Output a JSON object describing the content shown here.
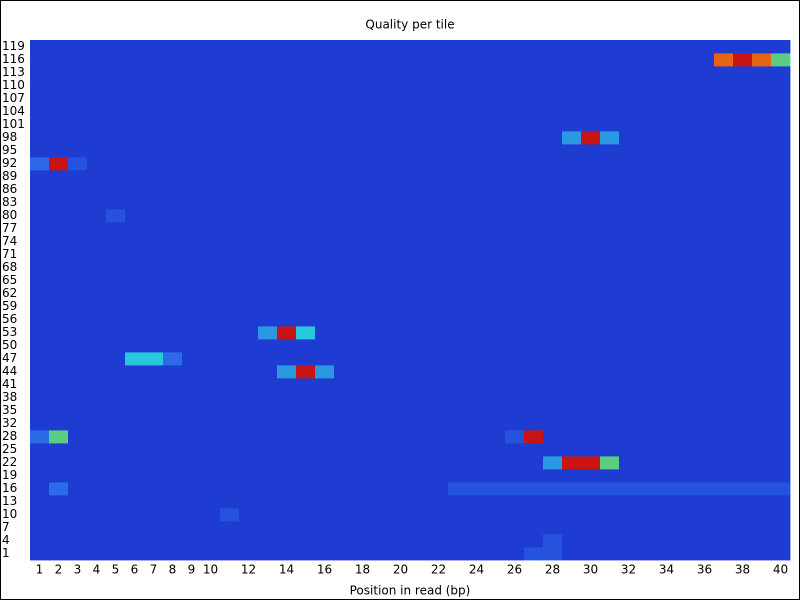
{
  "chart_data": {
    "type": "heatmap",
    "title": "Quality per tile",
    "x_label": "Position in read (bp)",
    "x": [
      1,
      2,
      3,
      4,
      5,
      6,
      7,
      8,
      9,
      10,
      null,
      12,
      null,
      14,
      null,
      16,
      null,
      18,
      null,
      20,
      null,
      22,
      null,
      24,
      null,
      26,
      null,
      28,
      null,
      30,
      null,
      32,
      null,
      34,
      null,
      36,
      null,
      38,
      null,
      40
    ],
    "y": [
      1,
      4,
      7,
      10,
      13,
      16,
      19,
      22,
      25,
      28,
      32,
      35,
      38,
      41,
      44,
      47,
      50,
      53,
      56,
      59,
      62,
      65,
      68,
      71,
      74,
      77,
      80,
      83,
      86,
      89,
      92,
      95,
      98,
      101,
      104,
      107,
      110,
      113,
      116,
      119
    ],
    "zlim": [
      0,
      10
    ],
    "colors": [
      "#1e3cd2",
      "#2c6ae8",
      "#28c8dc",
      "#8cd228",
      "#e66414",
      "#c81414"
    ],
    "values": [
      [
        0,
        0,
        0,
        0,
        0,
        0,
        0,
        0,
        0,
        0,
        0,
        0,
        0,
        0,
        0,
        0,
        0,
        0,
        0,
        0,
        0,
        0,
        0,
        0,
        0,
        0,
        1,
        1,
        0,
        0,
        0,
        0,
        0,
        0,
        0,
        0,
        0,
        0,
        0,
        0
      ],
      [
        0,
        0,
        0,
        0,
        0,
        0,
        0,
        0,
        0,
        0,
        0,
        0,
        0,
        0,
        0,
        0,
        0,
        0,
        0,
        0,
        0,
        0,
        0,
        0,
        0,
        0,
        0,
        1,
        0,
        0,
        0,
        0,
        0,
        0,
        0,
        0,
        0,
        0,
        0,
        0
      ],
      [
        0,
        0,
        0,
        0,
        0,
        0,
        0,
        0,
        0,
        0,
        0,
        0,
        0,
        0,
        0,
        0,
        0,
        0,
        0,
        0,
        0,
        0,
        0,
        0,
        0,
        0,
        0,
        0,
        0,
        0,
        0,
        0,
        0,
        0,
        0,
        0,
        0,
        0,
        0,
        0
      ],
      [
        0,
        0,
        0,
        0,
        0,
        0,
        0,
        0,
        0,
        0,
        1,
        0,
        0,
        0,
        0,
        0,
        0,
        0,
        0,
        0,
        0,
        0,
        0,
        0,
        0,
        0,
        0,
        0,
        0,
        0,
        0,
        0,
        0,
        0,
        0,
        0,
        0,
        0,
        0,
        0
      ],
      [
        0,
        0,
        0,
        0,
        0,
        0,
        0,
        0,
        0,
        0,
        0,
        0,
        0,
        0,
        0,
        0,
        0,
        0,
        0,
        0,
        0,
        0,
        0,
        0,
        0,
        0,
        0,
        0,
        0,
        0,
        0,
        0,
        0,
        0,
        0,
        0,
        0,
        0,
        0,
        0
      ],
      [
        0,
        2,
        0,
        0,
        0,
        0,
        0,
        0,
        0,
        0,
        0,
        0,
        0,
        0,
        0,
        0,
        0,
        0,
        0,
        0,
        0,
        0,
        1,
        1,
        1,
        1,
        1,
        1,
        1,
        1,
        1,
        1,
        1,
        1,
        1,
        1,
        1,
        1,
        1,
        1
      ],
      [
        0,
        0,
        0,
        0,
        0,
        0,
        0,
        0,
        0,
        0,
        0,
        0,
        0,
        0,
        0,
        0,
        0,
        0,
        0,
        0,
        0,
        0,
        0,
        0,
        0,
        0,
        0,
        0,
        0,
        0,
        0,
        0,
        0,
        0,
        0,
        0,
        0,
        0,
        0,
        0
      ],
      [
        0,
        0,
        0,
        0,
        0,
        0,
        0,
        0,
        0,
        0,
        0,
        0,
        0,
        0,
        0,
        0,
        0,
        0,
        0,
        0,
        0,
        0,
        0,
        0,
        0,
        0,
        0,
        3,
        10,
        10,
        5,
        0,
        0,
        0,
        0,
        0,
        0,
        0,
        0,
        0
      ],
      [
        0,
        0,
        0,
        0,
        0,
        0,
        0,
        0,
        0,
        0,
        0,
        0,
        0,
        0,
        0,
        0,
        0,
        0,
        0,
        0,
        0,
        0,
        0,
        0,
        0,
        0,
        0,
        0,
        0,
        0,
        0,
        0,
        0,
        0,
        0,
        0,
        0,
        0,
        0,
        0
      ],
      [
        2,
        5,
        0,
        0,
        0,
        0,
        0,
        0,
        0,
        0,
        0,
        0,
        0,
        0,
        0,
        0,
        0,
        0,
        0,
        0,
        0,
        0,
        0,
        0,
        0,
        1,
        10,
        0,
        0,
        0,
        0,
        0,
        0,
        0,
        0,
        0,
        0,
        0,
        0,
        0
      ],
      [
        0,
        0,
        0,
        0,
        0,
        0,
        0,
        0,
        0,
        0,
        0,
        0,
        0,
        0,
        0,
        0,
        0,
        0,
        0,
        0,
        0,
        0,
        0,
        0,
        0,
        0,
        0,
        0,
        0,
        0,
        0,
        0,
        0,
        0,
        0,
        0,
        0,
        0,
        0,
        0
      ],
      [
        0,
        0,
        0,
        0,
        0,
        0,
        0,
        0,
        0,
        0,
        0,
        0,
        0,
        0,
        0,
        0,
        0,
        0,
        0,
        0,
        0,
        0,
        0,
        0,
        0,
        0,
        0,
        0,
        0,
        0,
        0,
        0,
        0,
        0,
        0,
        0,
        0,
        0,
        0,
        0
      ],
      [
        0,
        0,
        0,
        0,
        0,
        0,
        0,
        0,
        0,
        0,
        0,
        0,
        0,
        0,
        0,
        0,
        0,
        0,
        0,
        0,
        0,
        0,
        0,
        0,
        0,
        0,
        0,
        0,
        0,
        0,
        0,
        0,
        0,
        0,
        0,
        0,
        0,
        0,
        0,
        0
      ],
      [
        0,
        0,
        0,
        0,
        0,
        0,
        0,
        0,
        0,
        0,
        0,
        0,
        0,
        0,
        0,
        0,
        0,
        0,
        0,
        0,
        0,
        0,
        0,
        0,
        0,
        0,
        0,
        0,
        0,
        0,
        0,
        0,
        0,
        0,
        0,
        0,
        0,
        0,
        0,
        0
      ],
      [
        0,
        0,
        0,
        0,
        0,
        0,
        0,
        0,
        0,
        0,
        0,
        0,
        0,
        3,
        10,
        3,
        0,
        0,
        0,
        0,
        0,
        0,
        0,
        0,
        0,
        0,
        0,
        0,
        0,
        0,
        0,
        0,
        0,
        0,
        0,
        0,
        0,
        0,
        0,
        0
      ],
      [
        0,
        0,
        0,
        0,
        0,
        4,
        4,
        2,
        0,
        0,
        0,
        0,
        0,
        0,
        0,
        0,
        0,
        0,
        0,
        0,
        0,
        0,
        0,
        0,
        0,
        0,
        0,
        0,
        0,
        0,
        0,
        0,
        0,
        0,
        0,
        0,
        0,
        0,
        0,
        0
      ],
      [
        0,
        0,
        0,
        0,
        0,
        0,
        0,
        0,
        0,
        0,
        0,
        0,
        0,
        0,
        0,
        0,
        0,
        0,
        0,
        0,
        0,
        0,
        0,
        0,
        0,
        0,
        0,
        0,
        0,
        0,
        0,
        0,
        0,
        0,
        0,
        0,
        0,
        0,
        0,
        0
      ],
      [
        0,
        0,
        0,
        0,
        0,
        0,
        0,
        0,
        0,
        0,
        0,
        0,
        3,
        10,
        4,
        0,
        0,
        0,
        0,
        0,
        0,
        0,
        0,
        0,
        0,
        0,
        0,
        0,
        0,
        0,
        0,
        0,
        0,
        0,
        0,
        0,
        0,
        0,
        0,
        0
      ],
      [
        0,
        0,
        0,
        0,
        0,
        0,
        0,
        0,
        0,
        0,
        0,
        0,
        0,
        0,
        0,
        0,
        0,
        0,
        0,
        0,
        0,
        0,
        0,
        0,
        0,
        0,
        0,
        0,
        0,
        0,
        0,
        0,
        0,
        0,
        0,
        0,
        0,
        0,
        0,
        0
      ],
      [
        0,
        0,
        0,
        0,
        0,
        0,
        0,
        0,
        0,
        0,
        0,
        0,
        0,
        0,
        0,
        0,
        0,
        0,
        0,
        0,
        0,
        0,
        0,
        0,
        0,
        0,
        0,
        0,
        0,
        0,
        0,
        0,
        0,
        0,
        0,
        0,
        0,
        0,
        0,
        0
      ],
      [
        0,
        0,
        0,
        0,
        0,
        0,
        0,
        0,
        0,
        0,
        0,
        0,
        0,
        0,
        0,
        0,
        0,
        0,
        0,
        0,
        0,
        0,
        0,
        0,
        0,
        0,
        0,
        0,
        0,
        0,
        0,
        0,
        0,
        0,
        0,
        0,
        0,
        0,
        0,
        0
      ],
      [
        0,
        0,
        0,
        0,
        0,
        0,
        0,
        0,
        0,
        0,
        0,
        0,
        0,
        0,
        0,
        0,
        0,
        0,
        0,
        0,
        0,
        0,
        0,
        0,
        0,
        0,
        0,
        0,
        0,
        0,
        0,
        0,
        0,
        0,
        0,
        0,
        0,
        0,
        0,
        0
      ],
      [
        0,
        0,
        0,
        0,
        0,
        0,
        0,
        0,
        0,
        0,
        0,
        0,
        0,
        0,
        0,
        0,
        0,
        0,
        0,
        0,
        0,
        0,
        0,
        0,
        0,
        0,
        0,
        0,
        0,
        0,
        0,
        0,
        0,
        0,
        0,
        0,
        0,
        0,
        0,
        0
      ],
      [
        0,
        0,
        0,
        0,
        0,
        0,
        0,
        0,
        0,
        0,
        0,
        0,
        0,
        0,
        0,
        0,
        0,
        0,
        0,
        0,
        0,
        0,
        0,
        0,
        0,
        0,
        0,
        0,
        0,
        0,
        0,
        0,
        0,
        0,
        0,
        0,
        0,
        0,
        0,
        0
      ],
      [
        0,
        0,
        0,
        0,
        0,
        0,
        0,
        0,
        0,
        0,
        0,
        0,
        0,
        0,
        0,
        0,
        0,
        0,
        0,
        0,
        0,
        0,
        0,
        0,
        0,
        0,
        0,
        0,
        0,
        0,
        0,
        0,
        0,
        0,
        0,
        0,
        0,
        0,
        0,
        0
      ],
      [
        0,
        0,
        0,
        0,
        0,
        0,
        0,
        0,
        0,
        0,
        0,
        0,
        0,
        0,
        0,
        0,
        0,
        0,
        0,
        0,
        0,
        0,
        0,
        0,
        0,
        0,
        0,
        0,
        0,
        0,
        0,
        0,
        0,
        0,
        0,
        0,
        0,
        0,
        0,
        0
      ],
      [
        0,
        0,
        0,
        0,
        1,
        0,
        0,
        0,
        0,
        0,
        0,
        0,
        0,
        0,
        0,
        0,
        0,
        0,
        0,
        0,
        0,
        0,
        0,
        0,
        0,
        0,
        0,
        0,
        0,
        0,
        0,
        0,
        0,
        0,
        0,
        0,
        0,
        0,
        0,
        0
      ],
      [
        0,
        0,
        0,
        0,
        0,
        0,
        0,
        0,
        0,
        0,
        0,
        0,
        0,
        0,
        0,
        0,
        0,
        0,
        0,
        0,
        0,
        0,
        0,
        0,
        0,
        0,
        0,
        0,
        0,
        0,
        0,
        0,
        0,
        0,
        0,
        0,
        0,
        0,
        0,
        0
      ],
      [
        0,
        0,
        0,
        0,
        0,
        0,
        0,
        0,
        0,
        0,
        0,
        0,
        0,
        0,
        0,
        0,
        0,
        0,
        0,
        0,
        0,
        0,
        0,
        0,
        0,
        0,
        0,
        0,
        0,
        0,
        0,
        0,
        0,
        0,
        0,
        0,
        0,
        0,
        0,
        0
      ],
      [
        0,
        0,
        0,
        0,
        0,
        0,
        0,
        0,
        0,
        0,
        0,
        0,
        0,
        0,
        0,
        0,
        0,
        0,
        0,
        0,
        0,
        0,
        0,
        0,
        0,
        0,
        0,
        0,
        0,
        0,
        0,
        0,
        0,
        0,
        0,
        0,
        0,
        0,
        0,
        0
      ],
      [
        2,
        10,
        1,
        0,
        0,
        0,
        0,
        0,
        0,
        0,
        0,
        0,
        0,
        0,
        0,
        0,
        0,
        0,
        0,
        0,
        0,
        0,
        0,
        0,
        0,
        0,
        0,
        0,
        0,
        0,
        0,
        0,
        0,
        0,
        0,
        0,
        0,
        0,
        0,
        0
      ],
      [
        0,
        0,
        0,
        0,
        0,
        0,
        0,
        0,
        0,
        0,
        0,
        0,
        0,
        0,
        0,
        0,
        0,
        0,
        0,
        0,
        0,
        0,
        0,
        0,
        0,
        0,
        0,
        0,
        0,
        0,
        0,
        0,
        0,
        0,
        0,
        0,
        0,
        0,
        0,
        0
      ],
      [
        0,
        0,
        0,
        0,
        0,
        0,
        0,
        0,
        0,
        0,
        0,
        0,
        0,
        0,
        0,
        0,
        0,
        0,
        0,
        0,
        0,
        0,
        0,
        0,
        0,
        0,
        0,
        0,
        3,
        10,
        3,
        0,
        0,
        0,
        0,
        0,
        0,
        0,
        0,
        0
      ],
      [
        0,
        0,
        0,
        0,
        0,
        0,
        0,
        0,
        0,
        0,
        0,
        0,
        0,
        0,
        0,
        0,
        0,
        0,
        0,
        0,
        0,
        0,
        0,
        0,
        0,
        0,
        0,
        0,
        0,
        0,
        0,
        0,
        0,
        0,
        0,
        0,
        0,
        0,
        0,
        0
      ],
      [
        0,
        0,
        0,
        0,
        0,
        0,
        0,
        0,
        0,
        0,
        0,
        0,
        0,
        0,
        0,
        0,
        0,
        0,
        0,
        0,
        0,
        0,
        0,
        0,
        0,
        0,
        0,
        0,
        0,
        0,
        0,
        0,
        0,
        0,
        0,
        0,
        0,
        0,
        0,
        0
      ],
      [
        0,
        0,
        0,
        0,
        0,
        0,
        0,
        0,
        0,
        0,
        0,
        0,
        0,
        0,
        0,
        0,
        0,
        0,
        0,
        0,
        0,
        0,
        0,
        0,
        0,
        0,
        0,
        0,
        0,
        0,
        0,
        0,
        0,
        0,
        0,
        0,
        0,
        0,
        0,
        0
      ],
      [
        0,
        0,
        0,
        0,
        0,
        0,
        0,
        0,
        0,
        0,
        0,
        0,
        0,
        0,
        0,
        0,
        0,
        0,
        0,
        0,
        0,
        0,
        0,
        0,
        0,
        0,
        0,
        0,
        0,
        0,
        0,
        0,
        0,
        0,
        0,
        0,
        0,
        0,
        0,
        0
      ],
      [
        0,
        0,
        0,
        0,
        0,
        0,
        0,
        0,
        0,
        0,
        0,
        0,
        0,
        0,
        0,
        0,
        0,
        0,
        0,
        0,
        0,
        0,
        0,
        0,
        0,
        0,
        0,
        0,
        0,
        0,
        0,
        0,
        0,
        0,
        0,
        0,
        0,
        0,
        0,
        0
      ],
      [
        0,
        0,
        0,
        0,
        0,
        0,
        0,
        0,
        0,
        0,
        0,
        0,
        0,
        0,
        0,
        0,
        0,
        0,
        0,
        0,
        0,
        0,
        0,
        0,
        0,
        0,
        0,
        0,
        0,
        0,
        0,
        0,
        0,
        0,
        0,
        0,
        8,
        10,
        8,
        5
      ],
      [
        0,
        0,
        0,
        0,
        0,
        0,
        0,
        0,
        0,
        0,
        0,
        0,
        0,
        0,
        0,
        0,
        0,
        0,
        0,
        0,
        0,
        0,
        0,
        0,
        0,
        0,
        0,
        0,
        0,
        0,
        0,
        0,
        0,
        0,
        0,
        0,
        0,
        0,
        0,
        0
      ]
    ]
  }
}
